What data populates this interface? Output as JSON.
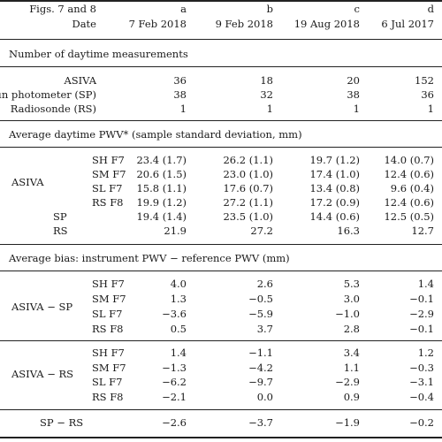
{
  "header": {
    "row1_label": "Figs. 7 and 8",
    "row2_label": "Date",
    "cols": [
      {
        "letter": "a",
        "date": "7 Feb 2018"
      },
      {
        "letter": "b",
        "date": "9 Feb 2018"
      },
      {
        "letter": "c",
        "date": "19 Aug 2018"
      },
      {
        "letter": "d",
        "date": "6 Jul 2017"
      }
    ]
  },
  "sections": {
    "counts": {
      "title": "Number of daytime measurements",
      "rows": [
        {
          "label": "ASIVA",
          "values": [
            "36",
            "18",
            "20",
            "152"
          ]
        },
        {
          "label": "Sun photometer (SP)",
          "values": [
            "38",
            "32",
            "38",
            "36"
          ]
        },
        {
          "label": "Radiosonde (RS)",
          "values": [
            "1",
            "1",
            "1",
            "1"
          ]
        }
      ]
    },
    "pwv": {
      "title": "Average daytime PWV* (sample standard deviation, mm)",
      "asiva_label": "ASIVA",
      "asiva_rows": [
        {
          "sub": "SH F7",
          "values": [
            "23.4 (1.7)",
            "26.2 (1.1)",
            "19.7 (1.2)",
            "14.0 (0.7)"
          ]
        },
        {
          "sub": "SM F7",
          "values": [
            "20.6 (1.5)",
            "23.0 (1.0)",
            "17.4 (1.0)",
            "12.4 (0.6)"
          ]
        },
        {
          "sub": "SL F7",
          "values": [
            "15.8 (1.1)",
            "17.6 (0.7)",
            "13.4 (0.8)",
            "9.6 (0.4)"
          ]
        },
        {
          "sub": "RS F8",
          "values": [
            "19.9 (1.2)",
            "27.2 (1.1)",
            "17.2 (0.9)",
            "12.4 (0.6)"
          ]
        }
      ],
      "other_rows": [
        {
          "label": "SP",
          "values": [
            "19.4 (1.4)",
            "23.5 (1.0)",
            "14.4 (0.6)",
            "12.5 (0.5)"
          ]
        },
        {
          "label": "RS",
          "values": [
            "21.9",
            "27.2",
            "16.3",
            "12.7"
          ]
        }
      ]
    },
    "bias": {
      "title": "Average bias: instrument PWV − reference PWV (mm)",
      "asiva_sp_label": "ASIVA − SP",
      "asiva_sp_rows": [
        {
          "sub": "SH F7",
          "values": [
            "4.0",
            "2.6",
            "5.3",
            "1.4"
          ]
        },
        {
          "sub": "SM F7",
          "values": [
            "1.3",
            "−0.5",
            "3.0",
            "−0.1"
          ]
        },
        {
          "sub": "SL F7",
          "values": [
            "−3.6",
            "−5.9",
            "−1.0",
            "−2.9"
          ]
        },
        {
          "sub": "RS F8",
          "values": [
            "0.5",
            "3.7",
            "2.8",
            "−0.1"
          ]
        }
      ],
      "asiva_rs_label": "ASIVA − RS",
      "asiva_rs_rows": [
        {
          "sub": "SH F7",
          "values": [
            "1.4",
            "−1.1",
            "3.4",
            "1.2"
          ]
        },
        {
          "sub": "SM F7",
          "values": [
            "−1.3",
            "−4.2",
            "1.1",
            "−0.3"
          ]
        },
        {
          "sub": "SL F7",
          "values": [
            "−6.2",
            "−9.7",
            "−2.9",
            "−3.1"
          ]
        },
        {
          "sub": "RS F8",
          "values": [
            "−2.1",
            "0.0",
            "0.9",
            "−0.4"
          ]
        }
      ],
      "sp_rs": {
        "label": "SP − RS",
        "values": [
          "−2.6",
          "−3.7",
          "−1.9",
          "−0.2"
        ]
      }
    }
  }
}
